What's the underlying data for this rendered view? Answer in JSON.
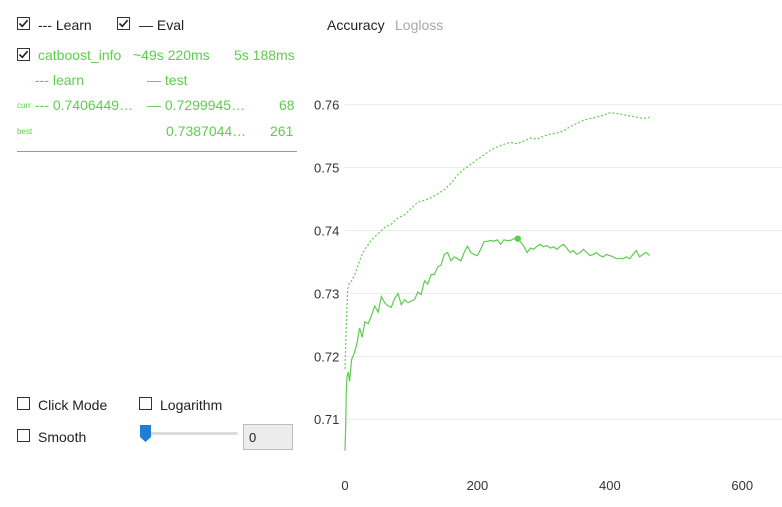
{
  "legend": {
    "learn_label": "--- Learn",
    "eval_label": "— Eval",
    "learn_checked": true,
    "eval_checked": true
  },
  "run": {
    "name": "catboost_info",
    "elapsed": "~49s 220ms",
    "remaining": "5s 188ms",
    "checked": true
  },
  "columns": {
    "learn": "--- learn",
    "test": "— test"
  },
  "rows": {
    "curr": {
      "label": "curr",
      "learn": "--- 0.7406449…",
      "test": "— 0.7299945…",
      "iter": "68"
    },
    "best": {
      "label": "best",
      "test": "0.7387044…",
      "iter": "261"
    }
  },
  "controls": {
    "click_mode": "Click Mode",
    "logarithm": "Logarithm",
    "smooth": "Smooth",
    "slider_value": "0"
  },
  "tabs": [
    {
      "label": "Accuracy",
      "active": true
    },
    {
      "label": "Logloss",
      "active": false
    }
  ],
  "colors": {
    "accent": "#5fcc4f",
    "slider": "#1f7fd2",
    "grid": "#ececec"
  },
  "chart_data": {
    "type": "line",
    "xlim": [
      0,
      660
    ],
    "ylim": [
      0.704,
      0.7655
    ],
    "x_ticks": [
      0,
      200,
      400,
      600
    ],
    "y_ticks": [
      0.71,
      0.72,
      0.73,
      0.74,
      0.75,
      0.76
    ],
    "grid": true,
    "legend": "none",
    "series": [
      {
        "style": "dashed",
        "x": [
          0,
          2,
          4,
          6,
          10,
          15,
          20,
          25,
          30,
          40,
          50,
          60,
          70,
          80,
          90,
          100,
          110,
          120,
          130,
          140,
          150,
          160,
          170,
          180,
          190,
          200,
          210,
          220,
          230,
          240,
          250,
          260,
          270,
          280,
          290,
          300,
          310,
          320,
          330,
          340,
          350,
          360,
          370,
          380,
          390,
          400,
          410,
          420,
          430,
          440,
          450,
          460
        ],
        "y": [
          0.718,
          0.725,
          0.7305,
          0.7315,
          0.732,
          0.733,
          0.7345,
          0.736,
          0.737,
          0.7385,
          0.7395,
          0.7405,
          0.741,
          0.742,
          0.7425,
          0.7435,
          0.7445,
          0.7448,
          0.7452,
          0.7458,
          0.7465,
          0.7475,
          0.7488,
          0.7498,
          0.7505,
          0.7513,
          0.752,
          0.7528,
          0.7533,
          0.7537,
          0.754,
          0.7538,
          0.7542,
          0.7547,
          0.7545,
          0.755,
          0.7553,
          0.7555,
          0.7558,
          0.7565,
          0.757,
          0.7575,
          0.7578,
          0.758,
          0.7583,
          0.7587,
          0.7586,
          0.7584,
          0.7582,
          0.758,
          0.7578,
          0.758
        ]
      },
      {
        "style": "solid",
        "x": [
          0,
          1,
          2,
          3,
          5,
          7,
          10,
          14,
          18,
          22,
          26,
          30,
          35,
          40,
          45,
          50,
          55,
          60,
          65,
          70,
          75,
          80,
          85,
          90,
          95,
          100,
          105,
          110,
          115,
          120,
          125,
          130,
          135,
          140,
          145,
          150,
          155,
          160,
          165,
          170,
          175,
          180,
          185,
          190,
          195,
          200,
          205,
          210,
          215,
          220,
          225,
          230,
          235,
          240,
          245,
          250,
          255,
          261,
          265,
          270,
          275,
          280,
          285,
          290,
          295,
          300,
          305,
          310,
          315,
          320,
          325,
          330,
          335,
          340,
          345,
          350,
          355,
          360,
          365,
          370,
          375,
          380,
          385,
          390,
          395,
          400,
          405,
          410,
          415,
          420,
          425,
          430,
          435,
          440,
          445,
          450,
          455,
          460
        ],
        "y": [
          0.705,
          0.709,
          0.7145,
          0.7168,
          0.7175,
          0.716,
          0.7195,
          0.7205,
          0.722,
          0.7245,
          0.723,
          0.7255,
          0.7252,
          0.7265,
          0.728,
          0.727,
          0.7295,
          0.7285,
          0.728,
          0.7278,
          0.7292,
          0.73,
          0.7282,
          0.729,
          0.7285,
          0.7288,
          0.729,
          0.7302,
          0.7298,
          0.732,
          0.7315,
          0.733,
          0.733,
          0.7342,
          0.7345,
          0.7362,
          0.7365,
          0.7352,
          0.7358,
          0.7355,
          0.7352,
          0.7365,
          0.7375,
          0.7365,
          0.7362,
          0.736,
          0.737,
          0.7382,
          0.7383,
          0.7384,
          0.7383,
          0.7385,
          0.7378,
          0.7385,
          0.7384,
          0.7384,
          0.7387,
          0.7387,
          0.7382,
          0.7375,
          0.7365,
          0.7372,
          0.737,
          0.7375,
          0.7378,
          0.7374,
          0.7376,
          0.7372,
          0.7374,
          0.737,
          0.7375,
          0.7378,
          0.7372,
          0.7365,
          0.7368,
          0.7362,
          0.7365,
          0.737,
          0.7365,
          0.736,
          0.7362,
          0.7365,
          0.736,
          0.7358,
          0.7362,
          0.736,
          0.7358,
          0.7355,
          0.7356,
          0.7355,
          0.7358,
          0.7355,
          0.7362,
          0.7368,
          0.7358,
          0.7362,
          0.7365,
          0.736
        ]
      }
    ],
    "best_point": {
      "x": 261,
      "y": 0.7387
    }
  }
}
